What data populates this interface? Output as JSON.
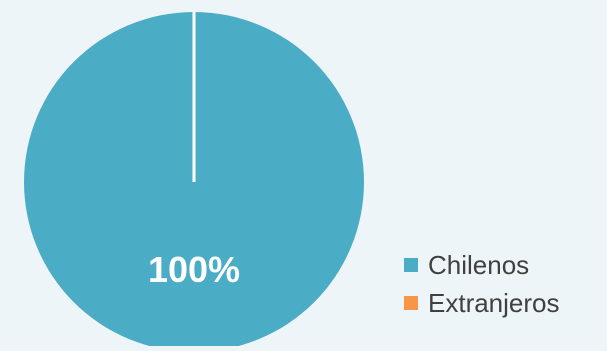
{
  "chart_data": {
    "type": "pie",
    "title": "",
    "slices": [
      {
        "name": "Chilenos",
        "value": 100,
        "color": "#4bacc6",
        "label": "100%"
      },
      {
        "name": "Extranjeros",
        "value": 0,
        "color": "#f79646",
        "label": ""
      }
    ],
    "legend_position": "right-bottom"
  }
}
